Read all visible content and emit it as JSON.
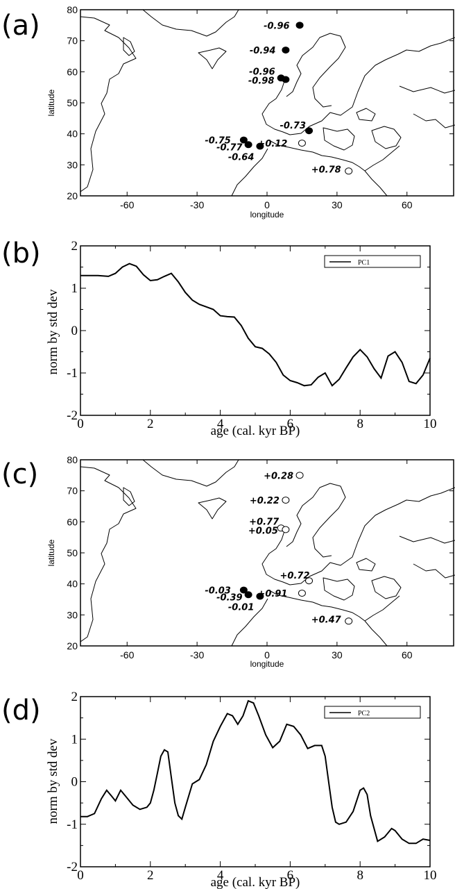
{
  "panels": {
    "a": {
      "letter": "(a)",
      "xlabel": "longitude",
      "ylabel": "latitude"
    },
    "b": {
      "letter": "(b)",
      "xlabel": "age (cal. kyr BP)",
      "ylabel": "norm by std dev",
      "legend": "PC1"
    },
    "c": {
      "letter": "(c)",
      "xlabel": "longitude",
      "ylabel": "latitude"
    },
    "d": {
      "letter": "(d)",
      "xlabel": "age (cal. kyr BP)",
      "ylabel": "norm by std dev",
      "legend": "PC2"
    }
  },
  "chart_data": [
    {
      "type": "scatter",
      "panel": "(a)",
      "xlabel": "longitude",
      "ylabel": "latitude",
      "xlim": [
        -80,
        80
      ],
      "ylim": [
        20,
        80
      ],
      "xticks": [
        -60,
        -30,
        0,
        30,
        60
      ],
      "yticks": [
        20,
        30,
        40,
        50,
        60,
        70,
        80
      ],
      "filled_marker_meaning": "negative loading",
      "points": [
        {
          "lon": 14,
          "lat": 75,
          "label": "-0.96",
          "filled": true
        },
        {
          "lon": 8,
          "lat": 67,
          "label": "-0.94",
          "filled": true
        },
        {
          "lon": 6,
          "lat": 58,
          "label": "-0.96",
          "filled": true
        },
        {
          "lon": 8,
          "lat": 57.5,
          "label": "-0.98",
          "filled": true
        },
        {
          "lon": 18,
          "lat": 41,
          "label": "-0.73",
          "filled": true
        },
        {
          "lon": -10,
          "lat": 38,
          "label": "-0.75",
          "filled": true
        },
        {
          "lon": -8,
          "lat": 36.5,
          "label": "-0.77",
          "filled": true
        },
        {
          "lon": -3,
          "lat": 36,
          "label": "-0.64",
          "filled": true
        },
        {
          "lon": 15,
          "lat": 37,
          "label": "+0.12",
          "filled": false
        },
        {
          "lon": 35,
          "lat": 28,
          "label": "+0.78",
          "filled": false
        }
      ]
    },
    {
      "type": "line",
      "panel": "(b)",
      "xlabel": "age (cal. kyr BP)",
      "ylabel": "norm by std dev",
      "xlim": [
        0,
        10
      ],
      "ylim": [
        -2,
        2
      ],
      "xticks": [
        0,
        2,
        4,
        6,
        8,
        10
      ],
      "yticks": [
        -2,
        -1,
        0,
        1,
        2
      ],
      "legend_position": "top-right",
      "series": [
        {
          "name": "PC1",
          "x": [
            0,
            0.5,
            0.8,
            1.0,
            1.2,
            1.4,
            1.6,
            1.8,
            2.0,
            2.2,
            2.4,
            2.6,
            2.8,
            3.0,
            3.2,
            3.4,
            3.6,
            3.8,
            4.0,
            4.2,
            4.4,
            4.6,
            4.8,
            5.0,
            5.2,
            5.4,
            5.6,
            5.8,
            6.0,
            6.2,
            6.4,
            6.6,
            6.8,
            7.0,
            7.2,
            7.4,
            7.6,
            7.8,
            8.0,
            8.2,
            8.4,
            8.6,
            8.8,
            9.0,
            9.2,
            9.4,
            9.6,
            9.8,
            10.0
          ],
          "y": [
            1.3,
            1.3,
            1.28,
            1.35,
            1.5,
            1.58,
            1.52,
            1.32,
            1.18,
            1.2,
            1.28,
            1.35,
            1.15,
            0.9,
            0.72,
            0.62,
            0.56,
            0.5,
            0.35,
            0.33,
            0.32,
            0.12,
            -0.18,
            -0.38,
            -0.42,
            -0.55,
            -0.75,
            -1.05,
            -1.18,
            -1.23,
            -1.3,
            -1.28,
            -1.1,
            -1.0,
            -1.3,
            -1.15,
            -0.88,
            -0.62,
            -0.45,
            -0.62,
            -0.9,
            -1.12,
            -0.6,
            -0.5,
            -0.75,
            -1.2,
            -1.25,
            -1.05,
            -0.65
          ]
        }
      ]
    },
    {
      "type": "scatter",
      "panel": "(c)",
      "xlabel": "longitude",
      "ylabel": "latitude",
      "xlim": [
        -80,
        80
      ],
      "ylim": [
        20,
        80
      ],
      "xticks": [
        -60,
        -30,
        0,
        30,
        60
      ],
      "yticks": [
        20,
        30,
        40,
        50,
        60,
        70,
        80
      ],
      "filled_marker_meaning": "negative loading",
      "points": [
        {
          "lon": 14,
          "lat": 75,
          "label": "+0.28",
          "filled": false
        },
        {
          "lon": 8,
          "lat": 67,
          "label": "+0.22",
          "filled": false
        },
        {
          "lon": 6,
          "lat": 58,
          "label": "+0.77",
          "filled": false
        },
        {
          "lon": 8,
          "lat": 57.5,
          "label": "+0.05",
          "filled": false
        },
        {
          "lon": 18,
          "lat": 41,
          "label": "+0.72",
          "filled": false
        },
        {
          "lon": -10,
          "lat": 38,
          "label": "-0.03",
          "filled": true
        },
        {
          "lon": -8,
          "lat": 36.5,
          "label": "-0.39",
          "filled": true
        },
        {
          "lon": -3,
          "lat": 36,
          "label": "-0.01",
          "filled": true
        },
        {
          "lon": 15,
          "lat": 37,
          "label": "+0.91",
          "filled": false
        },
        {
          "lon": 35,
          "lat": 28,
          "label": "+0.47",
          "filled": false
        }
      ]
    },
    {
      "type": "line",
      "panel": "(d)",
      "xlabel": "age (cal. kyr BP)",
      "ylabel": "norm by std dev",
      "xlim": [
        0,
        10
      ],
      "ylim": [
        -2,
        2
      ],
      "xticks": [
        0,
        2,
        4,
        6,
        8,
        10
      ],
      "yticks": [
        -2,
        -1,
        0,
        1,
        2
      ],
      "legend_position": "top-right",
      "series": [
        {
          "name": "PC2",
          "x": [
            0,
            0.2,
            0.4,
            0.6,
            0.75,
            0.9,
            1.0,
            1.15,
            1.3,
            1.5,
            1.7,
            1.9,
            2.0,
            2.1,
            2.2,
            2.3,
            2.4,
            2.5,
            2.6,
            2.7,
            2.8,
            2.9,
            3.0,
            3.2,
            3.4,
            3.6,
            3.8,
            4.0,
            4.2,
            4.35,
            4.5,
            4.65,
            4.8,
            4.95,
            5.1,
            5.3,
            5.5,
            5.7,
            5.9,
            6.1,
            6.3,
            6.5,
            6.7,
            6.9,
            7.0,
            7.1,
            7.2,
            7.3,
            7.4,
            7.6,
            7.8,
            8.0,
            8.1,
            8.2,
            8.3,
            8.5,
            8.7,
            8.9,
            9.0,
            9.2,
            9.4,
            9.6,
            9.8,
            10.0
          ],
          "y": [
            -0.82,
            -0.82,
            -0.75,
            -0.4,
            -0.2,
            -0.35,
            -0.45,
            -0.2,
            -0.35,
            -0.55,
            -0.65,
            -0.6,
            -0.5,
            -0.2,
            0.2,
            0.6,
            0.75,
            0.7,
            0.1,
            -0.5,
            -0.8,
            -0.88,
            -0.6,
            -0.05,
            0.05,
            0.4,
            0.95,
            1.3,
            1.6,
            1.55,
            1.35,
            1.55,
            1.9,
            1.85,
            1.55,
            1.1,
            0.8,
            0.95,
            1.35,
            1.3,
            1.1,
            0.78,
            0.85,
            0.85,
            0.6,
            0.0,
            -0.6,
            -0.95,
            -1.0,
            -0.95,
            -0.7,
            -0.2,
            -0.15,
            -0.3,
            -0.8,
            -1.4,
            -1.3,
            -1.1,
            -1.15,
            -1.35,
            -1.45,
            -1.45,
            -1.35,
            -1.38
          ]
        }
      ]
    }
  ]
}
